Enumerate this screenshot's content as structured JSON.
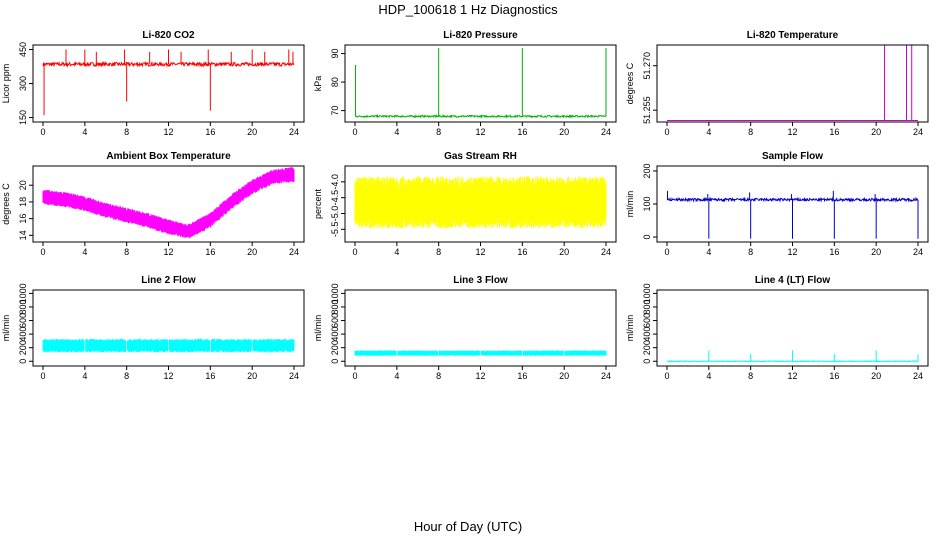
{
  "figure": {
    "title": "HDP_100618  1 Hz Diagnostics",
    "xlabel": "Hour of Day (UTC)"
  },
  "chart_data": [
    {
      "type": "line",
      "title": "Li-820 CO2",
      "ylabel": "Licor ppm",
      "color": "#ff0000",
      "xlim": [
        0,
        24
      ],
      "xticks": [
        "0",
        "4",
        "8",
        "12",
        "16",
        "20",
        "24"
      ],
      "ylim": [
        130,
        470
      ],
      "yticks": [
        150,
        300,
        450
      ],
      "ytick_labels": [
        "150",
        "300",
        "450"
      ],
      "baseline": 385,
      "noise": 8,
      "spikes": [
        {
          "x": 0.1,
          "y": 160
        },
        {
          "x": 2.2,
          "y": 450
        },
        {
          "x": 4.0,
          "y": 450
        },
        {
          "x": 5.1,
          "y": 440
        },
        {
          "x": 7.8,
          "y": 450
        },
        {
          "x": 8.0,
          "y": 220
        },
        {
          "x": 10.2,
          "y": 440
        },
        {
          "x": 12.0,
          "y": 450
        },
        {
          "x": 13.2,
          "y": 440
        },
        {
          "x": 15.8,
          "y": 450
        },
        {
          "x": 16.0,
          "y": 180
        },
        {
          "x": 18.0,
          "y": 440
        },
        {
          "x": 20.0,
          "y": 450
        },
        {
          "x": 21.2,
          "y": 440
        },
        {
          "x": 23.5,
          "y": 450
        },
        {
          "x": 23.9,
          "y": 440
        }
      ]
    },
    {
      "type": "line",
      "title": "Li-820 Pressure",
      "ylabel": "kPa",
      "color": "#00b000",
      "xlim": [
        0,
        24
      ],
      "xticks": [
        "0",
        "4",
        "8",
        "12",
        "16",
        "20",
        "24"
      ],
      "ylim": [
        66,
        93
      ],
      "yticks": [
        70,
        80,
        90
      ],
      "ytick_labels": [
        "70",
        "80",
        "90"
      ],
      "baseline": 68,
      "noise": 0.3,
      "spikes": [
        {
          "x": 0.05,
          "y": 86
        },
        {
          "x": 8.0,
          "y": 92
        },
        {
          "x": 16.0,
          "y": 92
        },
        {
          "x": 24.0,
          "y": 92
        }
      ]
    },
    {
      "type": "line",
      "title": "Li-820 Temperature",
      "ylabel": "degrees C",
      "color": "#cc00cc",
      "xlim": [
        0,
        24
      ],
      "xticks": [
        "0",
        "4",
        "8",
        "12",
        "16",
        "20",
        "24"
      ],
      "ylim": [
        51.251,
        51.277
      ],
      "yticks": [
        51.255,
        51.27
      ],
      "ytick_labels": [
        "51.255",
        "51.270"
      ],
      "baseline": 51.2515,
      "noise": 0,
      "spikes": [
        {
          "x": 20.8,
          "y": 51.277
        },
        {
          "x": 22.9,
          "y": 51.277
        },
        {
          "x": 23.4,
          "y": 51.277
        }
      ]
    },
    {
      "type": "band",
      "title": "Ambient Box Temperature",
      "ylabel": "degrees C",
      "color": "#ff00ff",
      "xlim": [
        0,
        24
      ],
      "xticks": [
        "0",
        "4",
        "8",
        "12",
        "16",
        "20",
        "24"
      ],
      "ylim": [
        13.2,
        22.3
      ],
      "yticks": [
        14,
        16,
        18,
        20
      ],
      "ytick_labels": [
        "14",
        "16",
        "18",
        "20"
      ],
      "center_x": [
        0,
        2,
        4,
        6,
        8,
        10,
        12,
        14,
        16,
        18,
        20,
        22,
        24
      ],
      "center_y": [
        18.6,
        18.3,
        17.8,
        17.0,
        16.4,
        15.8,
        15.0,
        14.5,
        15.8,
        18.0,
        19.8,
        21.0,
        21.3
      ],
      "halfwidth": 0.9
    },
    {
      "type": "band",
      "title": "Gas Stream RH",
      "ylabel": "percent",
      "color": "#ffff00",
      "xlim": [
        0,
        24
      ],
      "xticks": [
        "0",
        "4",
        "8",
        "12",
        "16",
        "20",
        "24"
      ],
      "ylim": [
        -5.9,
        -3.5
      ],
      "yticks": [
        -5.5,
        -5.0,
        -4.5,
        -4.0
      ],
      "ytick_labels": [
        "-5.5",
        "-5.0",
        "-4.5",
        "-4.0"
      ],
      "center_x": [
        0,
        24
      ],
      "center_y": [
        -4.65,
        -4.65
      ],
      "halfwidth": 0.82
    },
    {
      "type": "line",
      "title": "Sample Flow",
      "ylabel": "ml/min",
      "color": "#0000cc",
      "xlim": [
        0,
        24
      ],
      "xticks": [
        "0",
        "4",
        "8",
        "12",
        "16",
        "20",
        "24"
      ],
      "ylim": [
        -15,
        215
      ],
      "yticks": [
        0,
        100,
        200
      ],
      "ytick_labels": [
        "0",
        "100",
        "200"
      ],
      "baseline": 113,
      "noise": 4,
      "spikes": [
        {
          "x": 0.05,
          "y": 140
        },
        {
          "x": 3.9,
          "y": 130
        },
        {
          "x": 4.0,
          "y": -5
        },
        {
          "x": 7.9,
          "y": 135
        },
        {
          "x": 8.0,
          "y": -5
        },
        {
          "x": 11.9,
          "y": 130
        },
        {
          "x": 12.0,
          "y": -5
        },
        {
          "x": 15.9,
          "y": 140
        },
        {
          "x": 16.0,
          "y": -5
        },
        {
          "x": 19.9,
          "y": 130
        },
        {
          "x": 20.0,
          "y": -5
        },
        {
          "x": 23.8,
          "y": 120
        },
        {
          "x": 24.0,
          "y": -5
        }
      ]
    },
    {
      "type": "band",
      "title": "Line 2 Flow",
      "ylabel": "ml/min",
      "color": "#00ffff",
      "xlim": [
        0,
        24
      ],
      "xticks": [
        "0",
        "4",
        "8",
        "12",
        "16",
        "20",
        "24"
      ],
      "ylim": [
        -70,
        1050
      ],
      "yticks": [
        0,
        200,
        400,
        600,
        800,
        1000
      ],
      "ytick_labels": [
        "0",
        "200",
        "400",
        "600",
        "800",
        "1000"
      ],
      "center_x": [
        0,
        24
      ],
      "center_y": [
        230,
        230
      ],
      "halfwidth": 100,
      "gaps": [
        4,
        8,
        12,
        16,
        20
      ]
    },
    {
      "type": "band",
      "title": "Line 3 Flow",
      "ylabel": "ml/min",
      "color": "#00ffff",
      "xlim": [
        0,
        24
      ],
      "xticks": [
        "0",
        "4",
        "8",
        "12",
        "16",
        "20",
        "24"
      ],
      "ylim": [
        -70,
        1050
      ],
      "yticks": [
        0,
        200,
        400,
        600,
        800,
        1000
      ],
      "ytick_labels": [
        "0",
        "200",
        "400",
        "600",
        "800",
        "1000"
      ],
      "center_x": [
        0,
        24
      ],
      "center_y": [
        120,
        120
      ],
      "halfwidth": 40,
      "gaps": [
        4,
        8,
        12,
        16,
        20
      ]
    },
    {
      "type": "line",
      "title": "Line 4 (LT) Flow",
      "ylabel": "ml/min",
      "color": "#00ffff",
      "xlim": [
        0,
        24
      ],
      "xticks": [
        "0",
        "4",
        "8",
        "12",
        "16",
        "20",
        "24"
      ],
      "ylim": [
        -70,
        1050
      ],
      "yticks": [
        0,
        200,
        400,
        600,
        800,
        1000
      ],
      "ytick_labels": [
        "0",
        "200",
        "400",
        "600",
        "800",
        "1000"
      ],
      "baseline": 0,
      "noise": 6,
      "spikes": [
        {
          "x": 4.0,
          "y": 160
        },
        {
          "x": 8.0,
          "y": 110
        },
        {
          "x": 12.0,
          "y": 160
        },
        {
          "x": 16.0,
          "y": 110
        },
        {
          "x": 20.0,
          "y": 160
        },
        {
          "x": 24.0,
          "y": 100
        }
      ]
    }
  ]
}
